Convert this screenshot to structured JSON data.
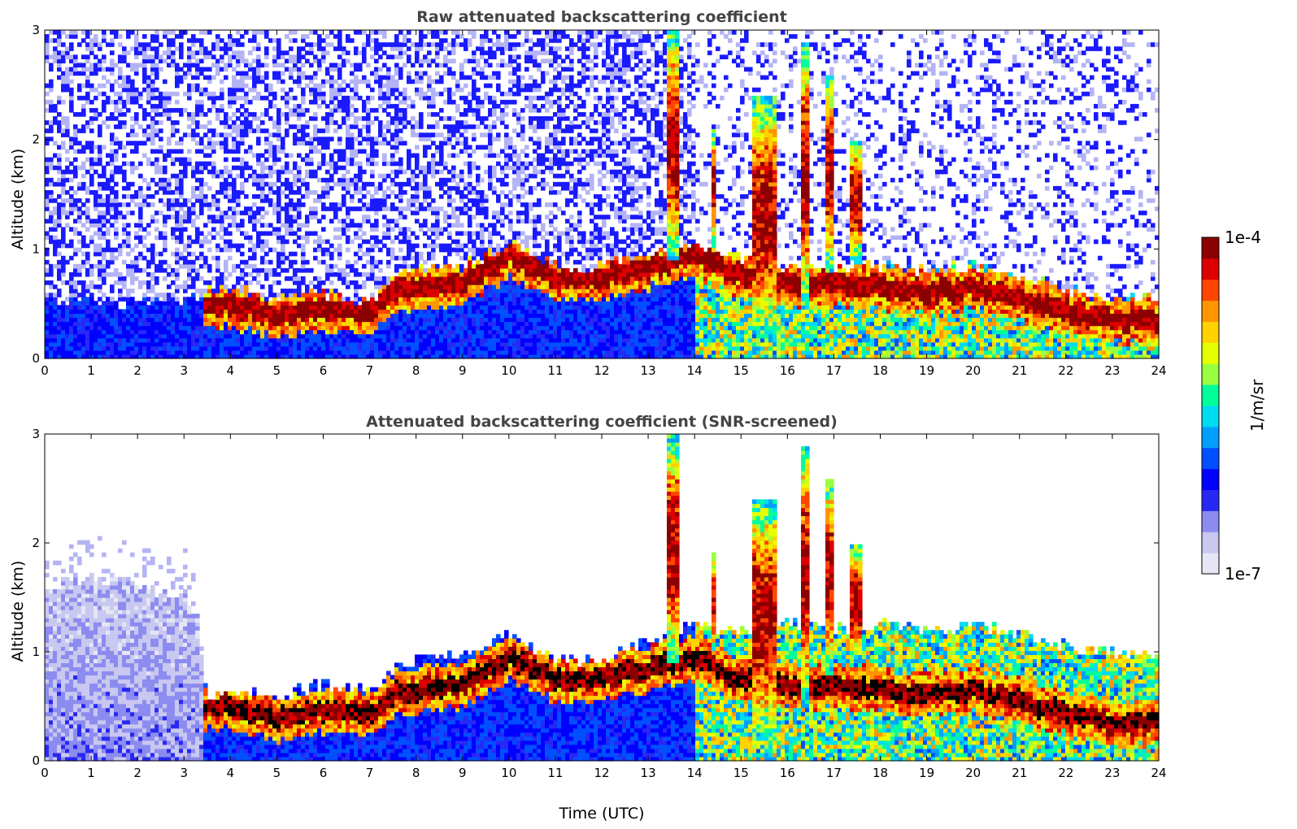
{
  "chart_data": [
    {
      "type": "heatmap",
      "title": "Raw attenuated backscattering coefficient",
      "xlabel": "",
      "ylabel": "Altitude (km)",
      "xlim": [
        0,
        24
      ],
      "ylim": [
        0,
        3
      ],
      "xticks": [
        "0",
        "1",
        "2",
        "3",
        "4",
        "5",
        "6",
        "7",
        "8",
        "9",
        "10",
        "11",
        "12",
        "13",
        "14",
        "15",
        "16",
        "17",
        "18",
        "19",
        "20",
        "21",
        "22",
        "23",
        "24"
      ],
      "yticks": [
        "0",
        "1",
        "2",
        "3"
      ],
      "screened": false,
      "layer_top_km": [
        [
          0,
          0.55
        ],
        [
          2,
          0.5
        ],
        [
          3.3,
          0.55
        ],
        [
          3.5,
          0.6
        ],
        [
          4,
          0.65
        ],
        [
          5,
          0.55
        ],
        [
          6,
          0.6
        ],
        [
          7,
          0.5
        ],
        [
          7.7,
          0.8
        ],
        [
          8.5,
          0.85
        ],
        [
          9,
          0.85
        ],
        [
          10,
          1.05
        ],
        [
          10.5,
          0.95
        ],
        [
          11,
          0.85
        ],
        [
          11.5,
          0.8
        ],
        [
          12,
          0.85
        ],
        [
          13,
          0.95
        ],
        [
          13.5,
          1.05
        ],
        [
          14,
          1.05
        ],
        [
          15,
          0.9
        ],
        [
          16,
          0.85
        ],
        [
          17,
          0.85
        ],
        [
          18,
          0.85
        ],
        [
          19,
          0.8
        ],
        [
          20,
          0.85
        ],
        [
          21,
          0.75
        ],
        [
          22,
          0.65
        ],
        [
          23,
          0.55
        ],
        [
          24,
          0.55
        ]
      ],
      "aerosol_peak_km": [
        [
          3.4,
          0.5
        ],
        [
          4,
          0.5
        ],
        [
          5,
          0.4
        ],
        [
          6,
          0.45
        ],
        [
          7,
          0.45
        ],
        [
          7.7,
          0.65
        ],
        [
          9,
          0.7
        ],
        [
          10,
          0.95
        ],
        [
          10.5,
          0.85
        ],
        [
          11,
          0.75
        ],
        [
          12,
          0.75
        ],
        [
          13,
          0.85
        ],
        [
          14,
          0.95
        ],
        [
          15,
          0.75
        ],
        [
          16,
          0.7
        ],
        [
          17,
          0.7
        ],
        [
          18,
          0.65
        ],
        [
          19,
          0.6
        ],
        [
          20,
          0.65
        ],
        [
          21,
          0.55
        ],
        [
          22,
          0.45
        ],
        [
          23,
          0.35
        ],
        [
          24,
          0.35
        ]
      ],
      "clouds": [
        {
          "t": 13.5,
          "base_km": 0.9,
          "top_km": 3.0,
          "width_h": 0.25
        },
        {
          "t": 14.4,
          "base_km": 1.0,
          "top_km": 2.1,
          "width_h": 0.15
        },
        {
          "t": 15.5,
          "base_km": 0.2,
          "top_km": 2.4,
          "width_h": 0.5
        },
        {
          "t": 16.4,
          "base_km": 0.5,
          "top_km": 2.9,
          "width_h": 0.2
        },
        {
          "t": 16.9,
          "base_km": 0.8,
          "top_km": 2.6,
          "width_h": 0.2
        },
        {
          "t": 17.5,
          "base_km": 0.9,
          "top_km": 2.0,
          "width_h": 0.25
        }
      ]
    },
    {
      "type": "heatmap",
      "title": "Attenuated backscattering coefficient (SNR-screened)",
      "xlabel": "Time (UTC)",
      "ylabel": "Altitude (km)",
      "xlim": [
        0,
        24
      ],
      "ylim": [
        0,
        3
      ],
      "xticks": [
        "0",
        "1",
        "2",
        "3",
        "4",
        "5",
        "6",
        "7",
        "8",
        "9",
        "10",
        "11",
        "12",
        "13",
        "14",
        "15",
        "16",
        "17",
        "18",
        "19",
        "20",
        "21",
        "22",
        "23",
        "24"
      ],
      "yticks": [
        "0",
        "1",
        "2",
        "3"
      ],
      "screened": true,
      "layer_top_km": [
        [
          0,
          1.6
        ],
        [
          1,
          1.7
        ],
        [
          2,
          1.6
        ],
        [
          3,
          1.5
        ],
        [
          3.3,
          1.3
        ],
        [
          3.5,
          0.6
        ],
        [
          4,
          0.65
        ],
        [
          5,
          0.6
        ],
        [
          6,
          0.7
        ],
        [
          7,
          0.65
        ],
        [
          7.7,
          0.9
        ],
        [
          8.5,
          0.95
        ],
        [
          9,
          1.0
        ],
        [
          10,
          1.15
        ],
        [
          10.5,
          1.05
        ],
        [
          11,
          0.95
        ],
        [
          11.5,
          0.9
        ],
        [
          12,
          0.95
        ],
        [
          13,
          1.1
        ],
        [
          13.5,
          1.15
        ],
        [
          14,
          1.25
        ],
        [
          15,
          1.2
        ],
        [
          16,
          1.25
        ],
        [
          17,
          1.2
        ],
        [
          18,
          1.25
        ],
        [
          19,
          1.2
        ],
        [
          20,
          1.25
        ],
        [
          21,
          1.15
        ],
        [
          22,
          1.05
        ],
        [
          23,
          1.0
        ],
        [
          24,
          0.95
        ]
      ],
      "aerosol_peak_km": [
        [
          3.4,
          0.5
        ],
        [
          4,
          0.5
        ],
        [
          5,
          0.4
        ],
        [
          6,
          0.45
        ],
        [
          7,
          0.45
        ],
        [
          7.7,
          0.65
        ],
        [
          9,
          0.7
        ],
        [
          10,
          0.95
        ],
        [
          10.5,
          0.85
        ],
        [
          11,
          0.75
        ],
        [
          12,
          0.75
        ],
        [
          13,
          0.85
        ],
        [
          14,
          0.95
        ],
        [
          15,
          0.75
        ],
        [
          16,
          0.7
        ],
        [
          17,
          0.7
        ],
        [
          18,
          0.65
        ],
        [
          19,
          0.6
        ],
        [
          20,
          0.65
        ],
        [
          21,
          0.55
        ],
        [
          22,
          0.45
        ],
        [
          23,
          0.35
        ],
        [
          24,
          0.35
        ]
      ],
      "clouds": [
        {
          "t": 13.5,
          "base_km": 0.9,
          "top_km": 3.0,
          "width_h": 0.25
        },
        {
          "t": 14.4,
          "base_km": 1.0,
          "top_km": 1.9,
          "width_h": 0.15
        },
        {
          "t": 15.5,
          "base_km": 0.2,
          "top_km": 2.4,
          "width_h": 0.5
        },
        {
          "t": 16.4,
          "base_km": 0.5,
          "top_km": 2.9,
          "width_h": 0.2
        },
        {
          "t": 16.9,
          "base_km": 0.8,
          "top_km": 2.6,
          "width_h": 0.2
        },
        {
          "t": 17.5,
          "base_km": 0.9,
          "top_km": 2.0,
          "width_h": 0.25
        }
      ]
    }
  ],
  "colorbar": {
    "min_label": "1e-7",
    "max_label": "1e-4",
    "unit_label": "1/m/sr",
    "colors": [
      "#e6e6f5",
      "#c8c8f0",
      "#8c8cf0",
      "#2828f5",
      "#0000ff",
      "#0050ff",
      "#00a0ff",
      "#00dcf0",
      "#00ff9a",
      "#9aff40",
      "#e6ff00",
      "#ffd200",
      "#ff9600",
      "#ff4600",
      "#dc0000",
      "#8b0000"
    ]
  },
  "palette": {
    "noise_blue": "#1a1aff",
    "noise_light": "#b4b4f5",
    "mid_blue": "#0a2af0",
    "peak_black": "#000000"
  }
}
